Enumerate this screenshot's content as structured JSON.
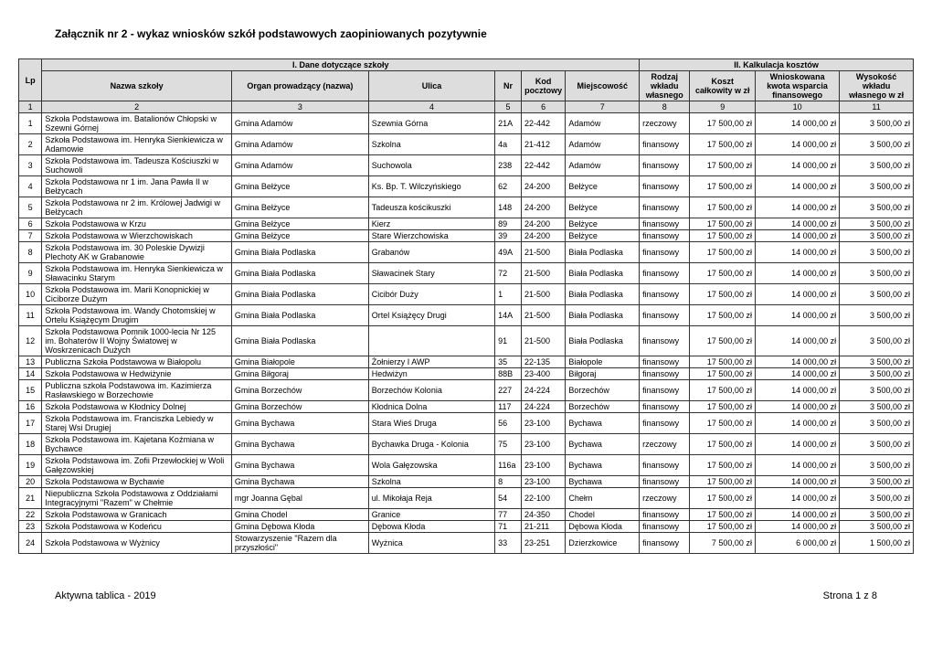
{
  "title": "Załącznik nr 2 - wykaz wniosków szkół podstawowych zaopiniowanych pozytywnie",
  "footer_left": "Aktywna tablica - 2019",
  "footer_right": "Strona 1 z 8",
  "headers": {
    "section1": "I. Dane dotyczące szkoły",
    "section2": "II. Kalkulacja kosztów",
    "lp": "Lp",
    "nazwa": "Nazwa szkoły",
    "organ": "Organ prowadzący (nazwa)",
    "ulica": "Ulica",
    "nr": "Nr",
    "kod": "Kod pocztowy",
    "miejsc": "Miejscowość",
    "rodzaj": "Rodzaj wkładu własnego",
    "koszt": "Koszt całkowity w zł",
    "wnios": "Wnioskowana kwota wsparcia finansowego",
    "wysok": "Wysokość wkładu własnego w zł"
  },
  "numrow": [
    "1",
    "2",
    "3",
    "4",
    "5",
    "6",
    "7",
    "8",
    "9",
    "10",
    "11"
  ],
  "rows": [
    {
      "lp": "1",
      "nazwa": "Szkoła Podstawowa im. Batalionów Chłopski w Szewni Górnej",
      "organ": "Gmina Adamów",
      "ulica": "Szewnia Górna",
      "nr": "21A",
      "kod": "22-442",
      "miejsc": "Adamów",
      "rodzaj": "rzeczowy",
      "koszt": "17 500,00 zł",
      "wnios": "14 000,00 zł",
      "wysok": "3 500,00 zł"
    },
    {
      "lp": "2",
      "nazwa": "Szkoła Podstawowa im. Henryka Sienkiewicza w Adamowie",
      "organ": "Gmina Adamów",
      "ulica": "Szkolna",
      "nr": "4a",
      "kod": "21-412",
      "miejsc": "Adamów",
      "rodzaj": "finansowy",
      "koszt": "17 500,00 zł",
      "wnios": "14 000,00 zł",
      "wysok": "3 500,00 zł"
    },
    {
      "lp": "3",
      "nazwa": "Szkoła Podstawowa im. Tadeusza Kościuszki w Suchowoli",
      "organ": "Gmina Adamów",
      "ulica": "Suchowola",
      "nr": "238",
      "kod": "22-442",
      "miejsc": "Adamów",
      "rodzaj": "finansowy",
      "koszt": "17 500,00 zł",
      "wnios": "14 000,00 zł",
      "wysok": "3 500,00 zł"
    },
    {
      "lp": "4",
      "nazwa": "Szkoła Podstawowa nr 1 im. Jana Pawła II w Bełżycach",
      "organ": "Gmina Bełżyce",
      "ulica": "Ks. Bp. T. Wilczyńskiego",
      "nr": "62",
      "kod": "24-200",
      "miejsc": "Bełżyce",
      "rodzaj": "finansowy",
      "koszt": "17 500,00 zł",
      "wnios": "14 000,00 zł",
      "wysok": "3 500,00 zł"
    },
    {
      "lp": "5",
      "nazwa": "Szkoła Podstawowa nr 2 im. Królowej Jadwigi w Bełżycach",
      "organ": "Gmina Bełżyce",
      "ulica": "Tadeusza kościkuszki",
      "nr": "148",
      "kod": "24-200",
      "miejsc": "Bełżyce",
      "rodzaj": "finansowy",
      "koszt": "17 500,00 zł",
      "wnios": "14 000,00 zł",
      "wysok": "3 500,00 zł"
    },
    {
      "lp": "6",
      "nazwa": "Szkoła Podstawowa w Krzu",
      "organ": "Gmina Bełżyce",
      "ulica": "Kierz",
      "nr": "89",
      "kod": "24-200",
      "miejsc": "Bełżyce",
      "rodzaj": "finansowy",
      "koszt": "17 500,00 zł",
      "wnios": "14 000,00 zł",
      "wysok": "3 500,00 zł"
    },
    {
      "lp": "7",
      "nazwa": "Szkoła Podstawowa w Wierzchowiskach",
      "organ": "Gmina Bełżyce",
      "ulica": "Stare Wierzchowiska",
      "nr": "39",
      "kod": "24-200",
      "miejsc": "Bełżyce",
      "rodzaj": "finansowy",
      "koszt": "17 500,00 zł",
      "wnios": "14 000,00 zł",
      "wysok": "3 500,00 zł"
    },
    {
      "lp": "8",
      "nazwa": "Szkoła Podstawowa im. 30 Poleskie Dywizji Plechoty AK w Grabanowie",
      "organ": "Gmina Biała Podlaska",
      "ulica": "Grabanów",
      "nr": "49A",
      "kod": "21-500",
      "miejsc": "Biała Podlaska",
      "rodzaj": "finansowy",
      "koszt": "17 500,00 zł",
      "wnios": "14 000,00 zł",
      "wysok": "3 500,00 zł"
    },
    {
      "lp": "9",
      "nazwa": "Szkoła Podstawowa im. Henryka Sienkiewicza w Sławacinku Starym",
      "organ": "Gmina Biała Podlaska",
      "ulica": "Sławacinek Stary",
      "nr": "72",
      "kod": "21-500",
      "miejsc": "Biała Podlaska",
      "rodzaj": "finansowy",
      "koszt": "17 500,00 zł",
      "wnios": "14 000,00 zł",
      "wysok": "3 500,00 zł"
    },
    {
      "lp": "10",
      "nazwa": "Szkoła Podstawowa im. Marii Konopnickiej w Ciciborze Dużym",
      "organ": "Gmina Biała Podlaska",
      "ulica": "Cicibór Duży",
      "nr": "1",
      "kod": "21-500",
      "miejsc": "Biała Podlaska",
      "rodzaj": "finansowy",
      "koszt": "17 500,00 zł",
      "wnios": "14 000,00 zł",
      "wysok": "3 500,00 zł"
    },
    {
      "lp": "11",
      "nazwa": "Szkoła Podstawowa im. Wandy Chotomskiej w Ortelu Książęcym Drugim",
      "organ": "Gmina Biała Podlaska",
      "ulica": "Ortel Książęcy Drugi",
      "nr": "14A",
      "kod": "21-500",
      "miejsc": "Biała Podlaska",
      "rodzaj": "finansowy",
      "koszt": "17 500,00 zł",
      "wnios": "14 000,00 zł",
      "wysok": "3 500,00 zł"
    },
    {
      "lp": "12",
      "nazwa": "Szkoła Podstawowa Pomnik 1000-lecia Nr 125 im. Bohaterów II Wojny Światowej w Woskrzenicach Dużych",
      "organ": "Gmina Biała Podlaska",
      "ulica": "",
      "nr": "91",
      "kod": "21-500",
      "miejsc": "Biała Podlaska",
      "rodzaj": "finansowy",
      "koszt": "17 500,00 zł",
      "wnios": "14 000,00 zł",
      "wysok": "3 500,00 zł"
    },
    {
      "lp": "13",
      "nazwa": "Publiczna Szkoła Podstawowa w Białopolu",
      "organ": "Gmina Białopole",
      "ulica": "Żołnierzy I AWP",
      "nr": "35",
      "kod": "22-135",
      "miejsc": "Białopole",
      "rodzaj": "finansowy",
      "koszt": "17 500,00 zł",
      "wnios": "14 000,00 zł",
      "wysok": "3 500,00 zł"
    },
    {
      "lp": "14",
      "nazwa": "Szkoła Podstawowa w Hedwiżynie",
      "organ": "Gmina Biłgoraj",
      "ulica": "Hedwiżyn",
      "nr": "88B",
      "kod": "23-400",
      "miejsc": "Biłgoraj",
      "rodzaj": "finansowy",
      "koszt": "17 500,00 zł",
      "wnios": "14 000,00 zł",
      "wysok": "3 500,00 zł"
    },
    {
      "lp": "15",
      "nazwa": "Publiczna szkoła Podstawowa im. Kazimierza Rasławskiego w Borzechowie",
      "organ": "Gmina Borzechów",
      "ulica": "Borzechów Kolonia",
      "nr": "227",
      "kod": "24-224",
      "miejsc": "Borzechów",
      "rodzaj": "finansowy",
      "koszt": "17 500,00 zł",
      "wnios": "14 000,00 zł",
      "wysok": "3 500,00 zł"
    },
    {
      "lp": "16",
      "nazwa": "Szkoła Podstawowa w Kłodnicy Dolnej",
      "organ": "Gmina Borzechów",
      "ulica": "Kłodnica Dolna",
      "nr": "117",
      "kod": "24-224",
      "miejsc": "Borzechów",
      "rodzaj": "finansowy",
      "koszt": "17 500,00 zł",
      "wnios": "14 000,00 zł",
      "wysok": "3 500,00 zł"
    },
    {
      "lp": "17",
      "nazwa": "Szkoła Podstawowa im. Franciszka Lebiedy w Starej Wsi Drugiej",
      "organ": "Gmina Bychawa",
      "ulica": "Stara Wieś Druga",
      "nr": "56",
      "kod": "23-100",
      "miejsc": "Bychawa",
      "rodzaj": "finansowy",
      "koszt": "17 500,00 zł",
      "wnios": "14 000,00 zł",
      "wysok": "3 500,00 zł"
    },
    {
      "lp": "18",
      "nazwa": "Szkoła Podstawowa im. Kajetana Koźmiana w Bychawce",
      "organ": "Gmina Bychawa",
      "ulica": "Bychawka Druga - Kolonia",
      "nr": "75",
      "kod": "23-100",
      "miejsc": "Bychawa",
      "rodzaj": "rzeczowy",
      "koszt": "17 500,00 zł",
      "wnios": "14 000,00 zł",
      "wysok": "3 500,00 zł"
    },
    {
      "lp": "19",
      "nazwa": "Szkoła Podstawowa im. Zofii Przewłockiej w Woli Gałęzowskiej",
      "organ": "Gmina Bychawa",
      "ulica": "Wola Gałęzowska",
      "nr": "116a",
      "kod": "23-100",
      "miejsc": "Bychawa",
      "rodzaj": "finansowy",
      "koszt": "17 500,00 zł",
      "wnios": "14 000,00 zł",
      "wysok": "3 500,00 zł"
    },
    {
      "lp": "20",
      "nazwa": "Szkoła Podstawowa w Bychawie",
      "organ": "Gmina Bychawa",
      "ulica": "Szkolna",
      "nr": "8",
      "kod": "23-100",
      "miejsc": "Bychawa",
      "rodzaj": "finansowy",
      "koszt": "17 500,00 zł",
      "wnios": "14 000,00 zł",
      "wysok": "3 500,00 zł"
    },
    {
      "lp": "21",
      "nazwa": "Niepubliczna Szkoła Podstawowa z Oddziałami Integracyjnymi \"Razem\" w Chełmie",
      "organ": "mgr Joanna Gębal",
      "ulica": "ul. Mikołaja Reja",
      "nr": "54",
      "kod": "22-100",
      "miejsc": "Chełm",
      "rodzaj": "rzeczowy",
      "koszt": "17 500,00 zł",
      "wnios": "14 000,00 zł",
      "wysok": "3 500,00 zł"
    },
    {
      "lp": "22",
      "nazwa": "Szkoła Podstawowa w Granicach",
      "organ": "Gmina Chodel",
      "ulica": "Granice",
      "nr": "77",
      "kod": "24-350",
      "miejsc": "Chodel",
      "rodzaj": "finansowy",
      "koszt": "17 500,00 zł",
      "wnios": "14 000,00 zł",
      "wysok": "3 500,00 zł"
    },
    {
      "lp": "23",
      "nazwa": "Szkoła Podstawowa w Kodeńcu",
      "organ": "Gmina Dębowa Kłoda",
      "ulica": "Dębowa Kłoda",
      "nr": "71",
      "kod": "21-211",
      "miejsc": "Dębowa Kłoda",
      "rodzaj": "finansowy",
      "koszt": "17 500,00 zł",
      "wnios": "14 000,00 zł",
      "wysok": "3 500,00 zł"
    },
    {
      "lp": "24",
      "nazwa": "Szkoła Podstawowa w Wyżnicy",
      "organ": "Stowarzyszenie \"Razem dla przyszłości\"",
      "ulica": "Wyżnica",
      "nr": "33",
      "kod": "23-251",
      "miejsc": "Dzierzkowice",
      "rodzaj": "finansowy",
      "koszt": "7 500,00 zł",
      "wnios": "6 000,00 zł",
      "wysok": "1 500,00 zł"
    }
  ],
  "col_widths": [
    "22px",
    "180px",
    "130px",
    "120px",
    "25px",
    "42px",
    "70px",
    "48px",
    "62px",
    "80px",
    "70px"
  ]
}
